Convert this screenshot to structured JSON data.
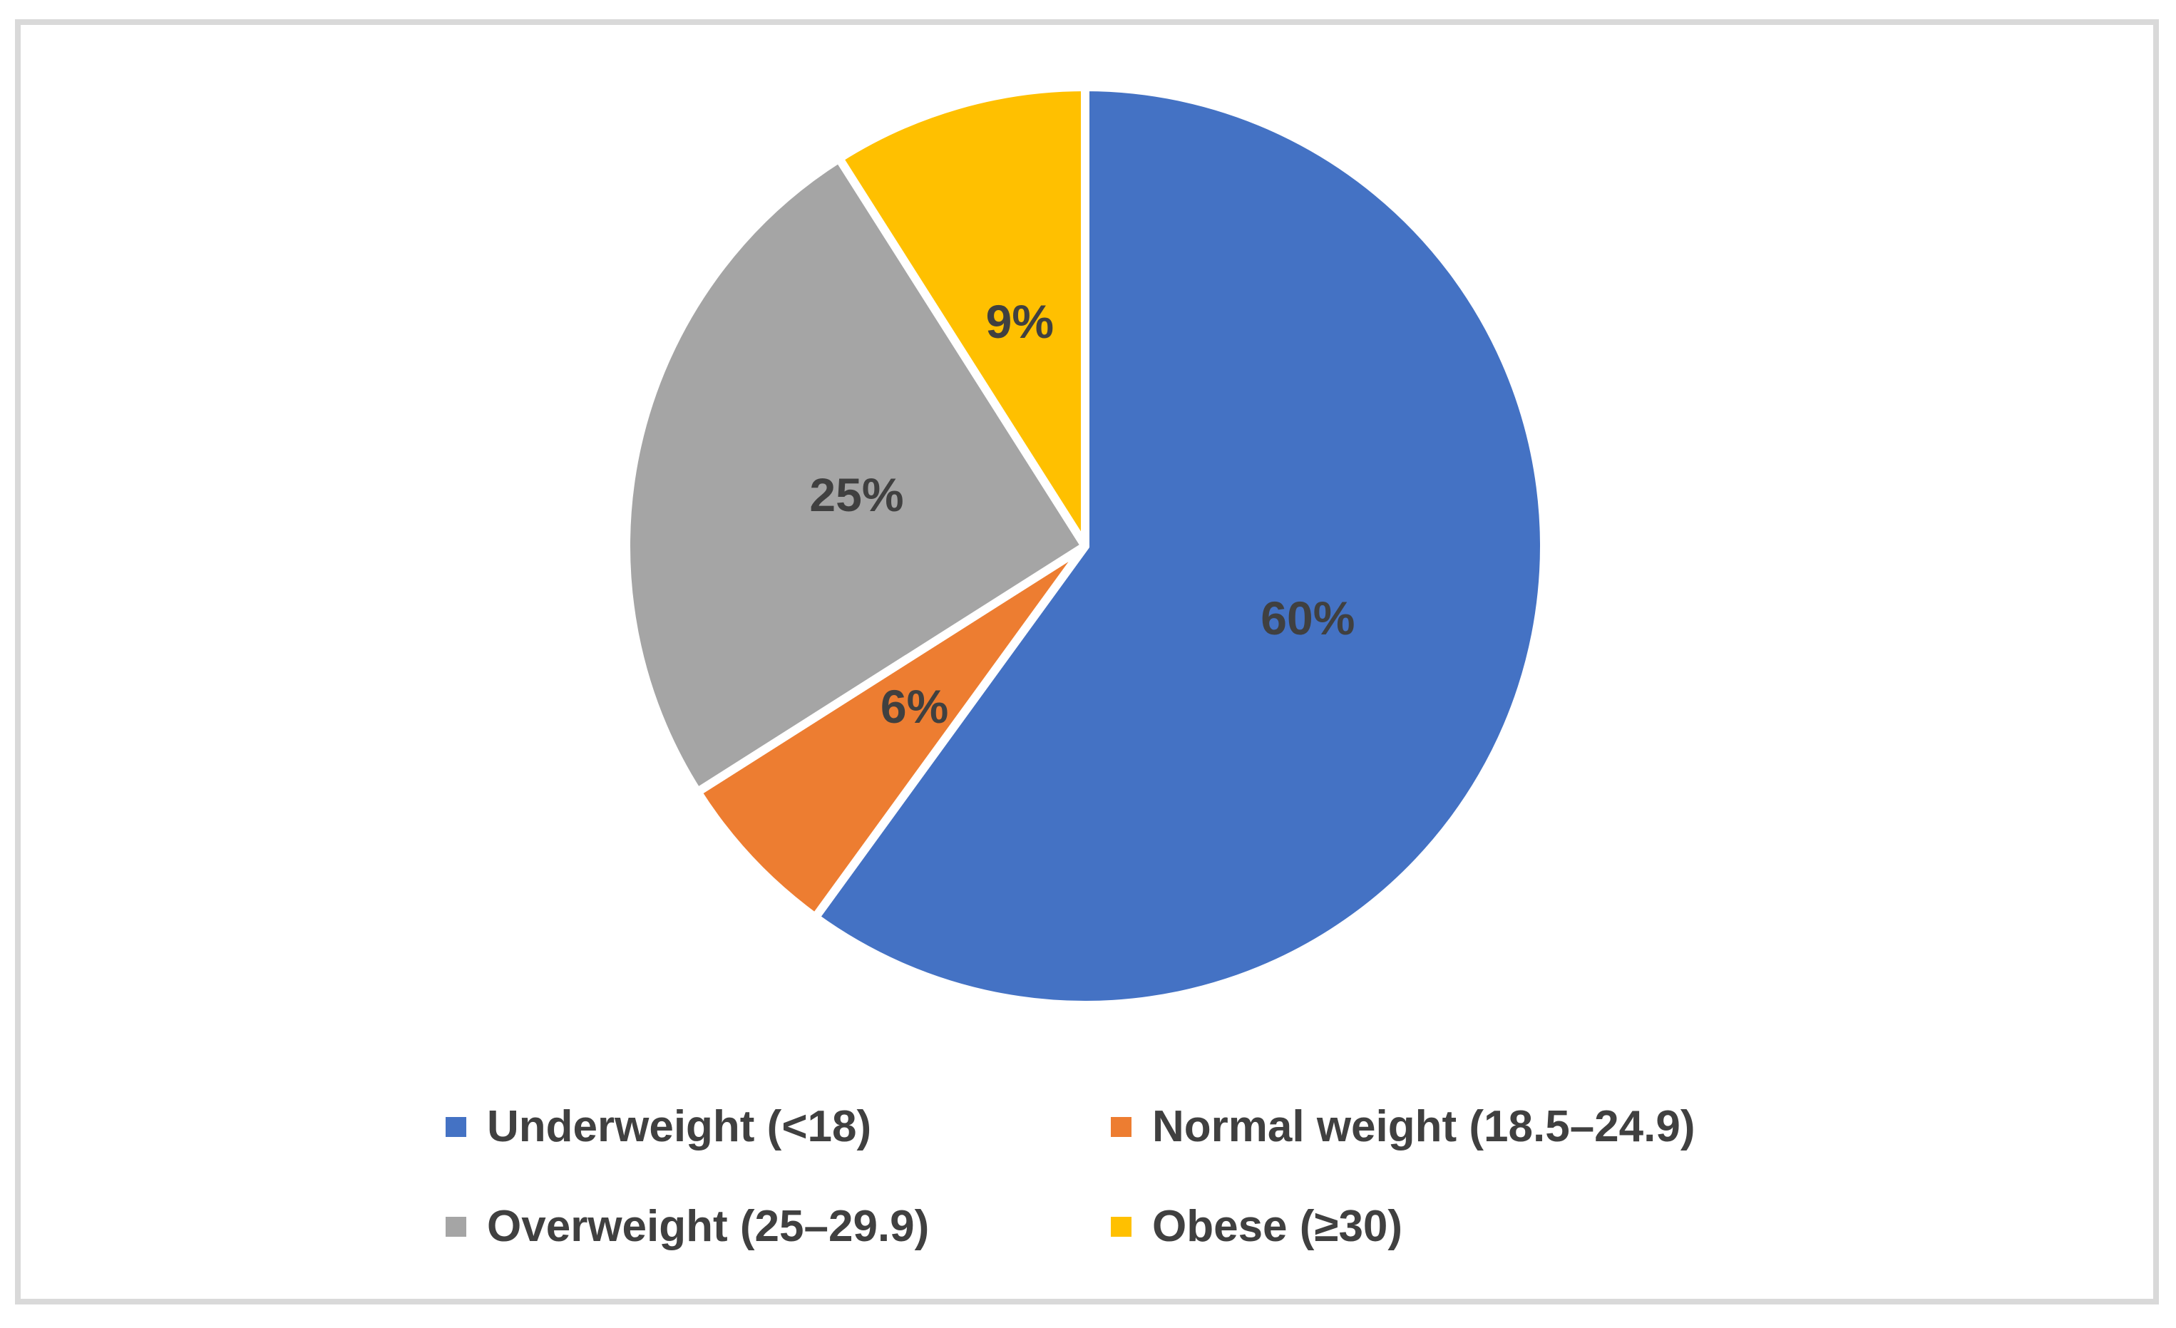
{
  "chart_data": {
    "type": "pie",
    "title": "",
    "direction": "clockwise",
    "start_angle_deg": 0,
    "legend_position": "bottom",
    "legend_columns": 2,
    "slices": [
      {
        "label": "Underweight (<18)",
        "value": 60,
        "display": "60%",
        "color": "#4472C4"
      },
      {
        "label": "Normal weight (18.5–24.9)",
        "value": 6,
        "display": "6%",
        "color": "#ED7D31"
      },
      {
        "label": "Overweight (25–29.9)",
        "value": 25,
        "display": "25%",
        "color": "#A5A5A5"
      },
      {
        "label": "Obese (≥30)",
        "value": 9,
        "display": "9%",
        "color": "#FFC000"
      }
    ]
  },
  "style": {
    "frame_border_color": "#D9D9D9",
    "background_color": "#FFFFFF",
    "slice_separator_color": "#FFFFFF",
    "text_color": "#404040"
  }
}
